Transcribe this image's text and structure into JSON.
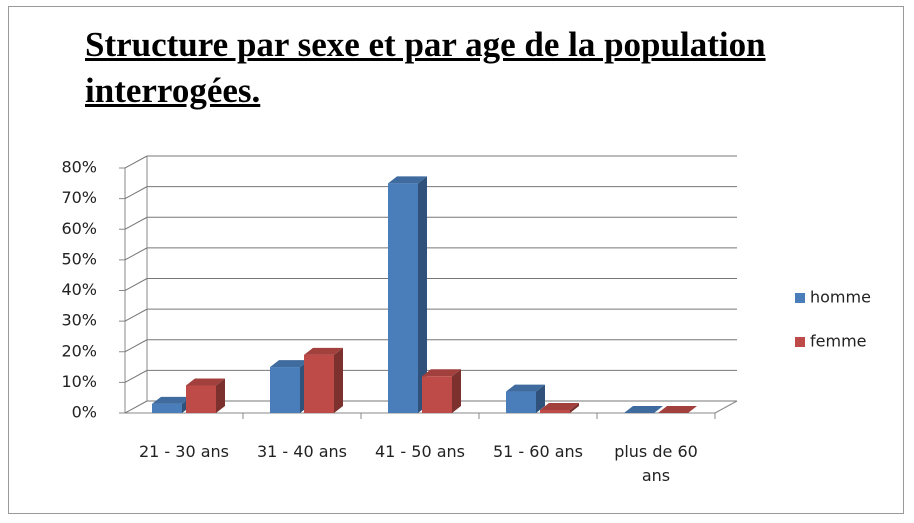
{
  "chart_data": {
    "type": "bar3d",
    "title": "Structure par sexe et par age de la population interrogées.",
    "categories": [
      "21 - 30 ans",
      "31 - 40 ans",
      "41 - 50 ans",
      "51 - 60 ans",
      "plus de 60 ans"
    ],
    "series": [
      {
        "name": "homme",
        "color": "#4a7ebb",
        "values": [
          3,
          15,
          75,
          7,
          0
        ]
      },
      {
        "name": "femme",
        "color": "#be4b48",
        "values": [
          9,
          19,
          12,
          1,
          0
        ]
      }
    ],
    "ylim": [
      0,
      80
    ],
    "yticks": [
      {
        "value": 0,
        "label": "0%"
      },
      {
        "value": 10,
        "label": "10%"
      },
      {
        "value": 20,
        "label": "20%"
      },
      {
        "value": 30,
        "label": "30%"
      },
      {
        "value": 40,
        "label": "40%"
      },
      {
        "value": 50,
        "label": "50%"
      },
      {
        "value": 60,
        "label": "60%"
      },
      {
        "value": 70,
        "label": "70%"
      },
      {
        "value": 80,
        "label": "80%"
      }
    ],
    "grid": true,
    "legend": "right"
  }
}
